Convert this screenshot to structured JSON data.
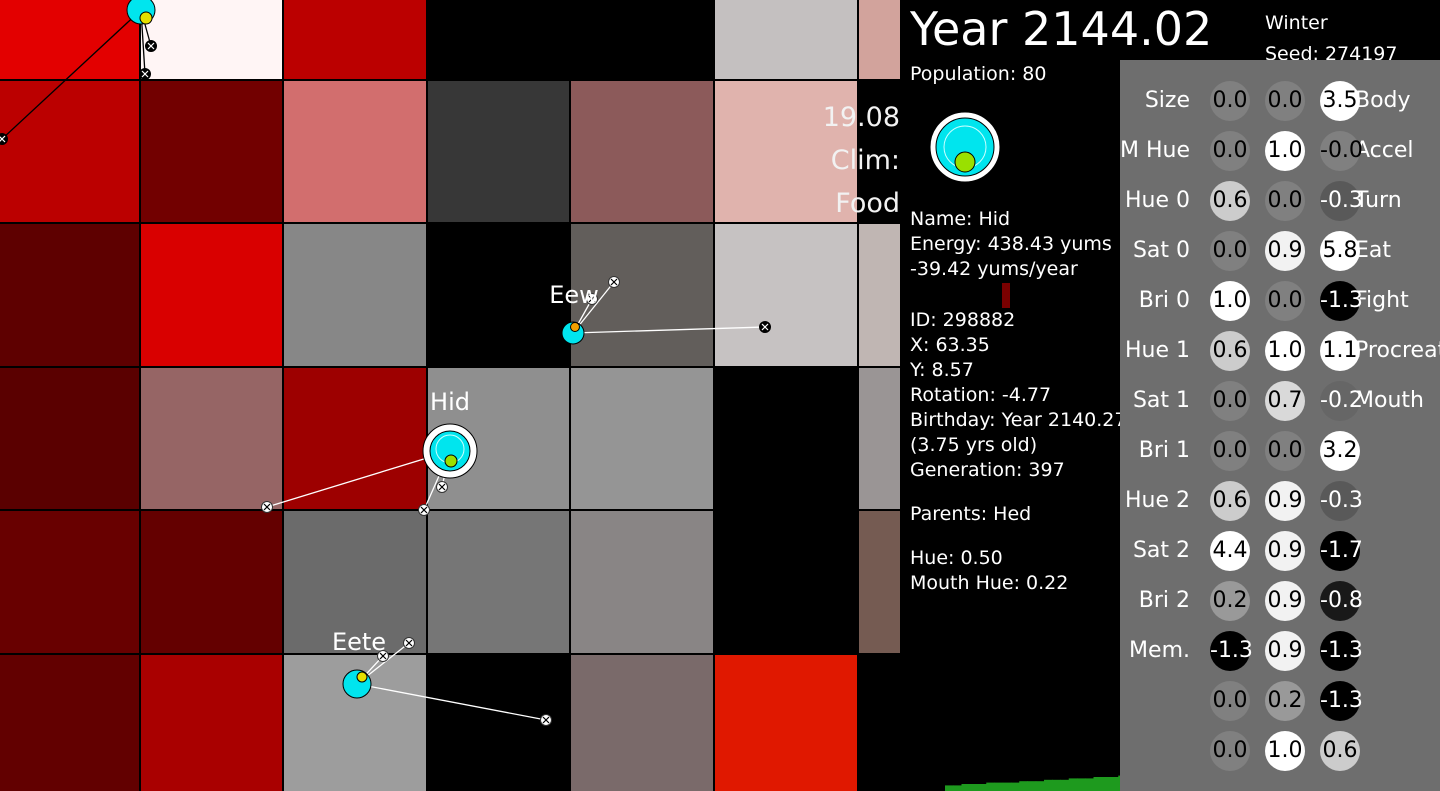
{
  "world": {
    "tile_colors": [
      [
        "#e30000",
        "#fff5f5",
        "#bb0000",
        "#000000",
        "#000000",
        "#c4c0c0",
        "#d2a39c"
      ],
      [
        "#bb0000",
        "#720000",
        "#d26e6e",
        "#373737",
        "#8c5a5a",
        "#e0b3ad",
        "#000000"
      ],
      [
        "#5e0000",
        "#d90000",
        "#878787",
        "#000000",
        "#625e5b",
        "#c6c2c2",
        "#c0b6b3"
      ],
      [
        "#5a0000",
        "#966565",
        "#9d0000",
        "#8f8f8f",
        "#959595",
        "#000000",
        "#9a9595"
      ],
      [
        "#680000",
        "#640000",
        "#6b6b6b",
        "#767676",
        "#898585",
        "#000000",
        "#755b52"
      ],
      [
        "#620000",
        "#a90000",
        "#9d9d9d",
        "#000000",
        "#7a6a6a",
        "#e01800",
        "#000000"
      ]
    ],
    "tile_readout": [
      "19.08",
      "Clim:",
      "Food"
    ],
    "creatures": [
      {
        "name": "Hid",
        "body_color": "#00e5ee",
        "mouth_color": "#9ae000",
        "selected": true
      },
      {
        "name": "Eew",
        "body_color": "#00e5ee",
        "mouth_color": "#f0a000",
        "selected": false
      },
      {
        "name": "Eete",
        "body_color": "#00e5ee",
        "mouth_color": "#e6e000",
        "selected": false
      },
      {
        "name": "",
        "body_color": "#00e5ee",
        "mouth_color": "#e6e000",
        "selected": false
      }
    ]
  },
  "header": {
    "year": "Year 2144.02",
    "season": "Winter",
    "seed": "Seed: 274197",
    "population": "Population: 80"
  },
  "selected": {
    "body_color": "#00e5ee",
    "mouth_color": "#9ae000",
    "name": "Name: Hid",
    "energy": "Energy: 438.43 yums",
    "energy_rate": "-39.42 yums/year",
    "energy_bar_color": "#7a0000",
    "id": "ID: 298882",
    "x": "X: 63.35",
    "y": "Y: 8.57",
    "rotation": "Rotation: -4.77",
    "birthday": "Birthday: Year 2140.27",
    "age": "(3.75 yrs old)",
    "generation": "Generation: 397",
    "parents": "Parents: Hed",
    "hue": "Hue: 0.50",
    "mouth_hue": "Mouth Hue: 0.22"
  },
  "brain": {
    "input_labels": [
      "Size",
      "M Hue",
      "Hue 0",
      "Sat 0",
      "Bri 0",
      "Hue 1",
      "Sat 1",
      "Bri 1",
      "Hue 2",
      "Sat 2",
      "Bri 2",
      "Mem.",
      "",
      ""
    ],
    "output_labels": [
      "Body",
      "Accel",
      "Turn",
      "Eat",
      "Fight",
      "Procreate",
      "Mouth",
      "",
      "",
      "",
      "",
      "",
      "",
      ""
    ],
    "columns": [
      [
        "0.0",
        "0.0",
        "0.6",
        "0.0",
        "1.0",
        "0.6",
        "0.0",
        "0.0",
        "0.6",
        "4.4",
        "0.2",
        "-1.3",
        "0.0",
        "0.0"
      ],
      [
        "0.0",
        "1.0",
        "0.0",
        "0.9",
        "0.0",
        "1.0",
        "0.7",
        "0.0",
        "0.9",
        "0.9",
        "0.9",
        "0.9",
        "0.2",
        "1.0"
      ],
      [
        "3.5",
        "-0.0",
        "-0.3",
        "5.8",
        "-1.3",
        "1.1",
        "-0.2",
        "3.2",
        "-0.3",
        "-1.7",
        "-0.8",
        "-1.3",
        "-1.3",
        "0.6"
      ]
    ]
  },
  "population_graph": {
    "color": "#1e9a1e",
    "values": [
      4,
      4,
      5,
      5,
      5,
      6,
      6,
      6,
      6,
      7,
      7,
      7,
      8,
      8,
      8,
      9,
      9,
      9,
      10,
      10,
      10,
      11,
      11,
      11,
      12,
      12,
      12,
      12,
      13,
      13,
      13,
      13,
      14,
      14,
      14,
      14,
      15,
      15,
      15,
      16,
      16,
      16,
      17,
      17,
      17,
      17,
      17,
      17,
      18,
      18,
      18,
      18,
      18,
      19,
      19,
      19,
      19,
      20,
      20,
      20
    ]
  }
}
